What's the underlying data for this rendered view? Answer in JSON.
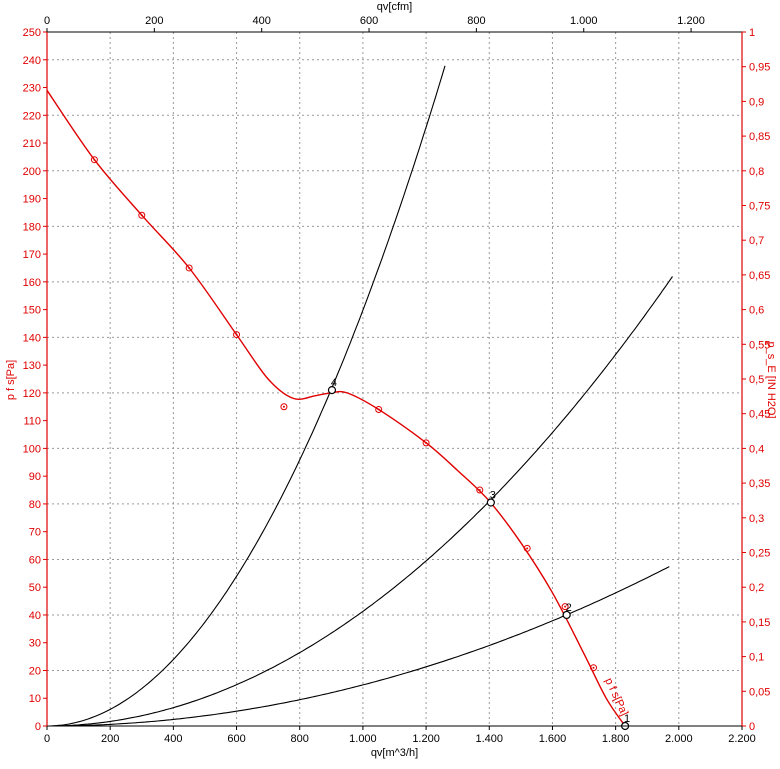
{
  "chart_data": {
    "type": "line",
    "title": "",
    "xlabel_bottom": "qv[m^3/h]",
    "xlabel_top": "qv[cfm]",
    "ylabel_left": "p f s[Pa]",
    "ylabel_right": "p_s_E [IN H2O]",
    "curve_label": "p f s[Pa]",
    "x_bottom_ticks": [
      "0",
      "200",
      "400",
      "600",
      "800",
      "1.000",
      "1.200",
      "1.400",
      "1.600",
      "1.800",
      "2.000",
      "2.200"
    ],
    "x_top_ticks": [
      "0",
      "200",
      "400",
      "600",
      "800",
      "1.000",
      "1.200"
    ],
    "y_left_ticks": [
      "0",
      "10",
      "20",
      "30",
      "40",
      "50",
      "60",
      "70",
      "80",
      "90",
      "100",
      "110",
      "120",
      "130",
      "140",
      "150",
      "160",
      "170",
      "180",
      "190",
      "200",
      "210",
      "220",
      "230",
      "240",
      "250"
    ],
    "y_right_ticks": [
      "0",
      "0,05",
      "0,1",
      "0,15",
      "0,2",
      "0,25",
      "0,3",
      "0,35",
      "0,4",
      "0,45",
      "0,5",
      "0,55",
      "0,6",
      "0,65",
      "0,7",
      "0,75",
      "0,8",
      "0,85",
      "0,9",
      "0,95",
      "1"
    ],
    "xlim": [
      0,
      2200
    ],
    "ylim": [
      0,
      250
    ],
    "grid": true,
    "colors": {
      "fan_curve": "#e00000",
      "system_curves": "#000000",
      "grid": "#999999"
    },
    "fan_curve": {
      "name": "p f s[Pa]",
      "x": [
        0,
        150,
        300,
        450,
        600,
        700,
        780,
        850,
        900,
        950,
        1050,
        1200,
        1300,
        1400,
        1500,
        1600,
        1700,
        1770,
        1830
      ],
      "y": [
        229,
        204,
        184,
        165,
        141,
        125,
        118,
        119,
        120,
        120,
        114,
        102,
        92,
        81,
        66,
        48,
        26,
        10,
        0
      ]
    },
    "measured_points": {
      "x": [
        150,
        300,
        450,
        600,
        750,
        1050,
        1200,
        1370,
        1520,
        1640,
        1730
      ],
      "y": [
        204,
        184,
        165,
        141,
        115,
        114,
        102,
        85,
        64,
        43,
        21
      ]
    },
    "system_curves": [
      {
        "k": 0.0001498,
        "xmax": 1260
      },
      {
        "k": 4.13e-05,
        "xmax": 1985
      },
      {
        "k": 1.48e-05,
        "xmax": 1975
      }
    ],
    "operating_points": [
      {
        "label": "1",
        "x": 1830,
        "y": 0
      },
      {
        "label": "2",
        "x": 1645,
        "y": 40
      },
      {
        "label": "3",
        "x": 1405,
        "y": 80.5
      },
      {
        "label": "4",
        "x": 902,
        "y": 121
      }
    ]
  }
}
